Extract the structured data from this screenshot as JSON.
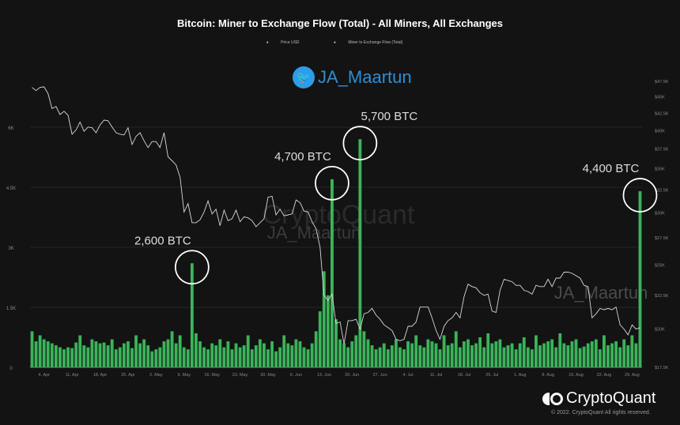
{
  "chart_data": {
    "type": "bar+line",
    "title": "Bitcoin: Miner to Exchange Flow (Total) - All Miners, All Exchanges",
    "legend": [
      "Price USD",
      "Miner to Exchange Flow (Total)"
    ],
    "legend_placement": "top-center",
    "x_start": "2022-04-01",
    "x_tick_labels": [
      "4. Apr",
      "11. Apr",
      "18. Apr",
      "25. Apr",
      "2. May",
      "9. May",
      "16. May",
      "23. May",
      "30. May",
      "6. Jun",
      "13. Jun",
      "20. Jun",
      "27. Jun",
      "4. Jul",
      "11. Jul",
      "18. Jul",
      "25. Jul",
      "1. Aug",
      "8. Aug",
      "15. Aug",
      "22. Aug",
      "29. Aug"
    ],
    "y_left_ticks": [
      "0",
      "1.5K",
      "3K",
      "4.5K",
      "6K"
    ],
    "y_left_range": [
      0,
      7500
    ],
    "y_right_ticks": [
      "$17.5K",
      "$20K",
      "$22.5K",
      "$25K",
      "$27.5K",
      "$30K",
      "$32.5K",
      "$35K",
      "$37.5K",
      "$40K",
      "$42.5K",
      "$45K",
      "$47.5K"
    ],
    "y_right_scale": "log",
    "grid": "horizontal",
    "colors": {
      "flow": "#3cb35a",
      "price": "#d8d8d8",
      "annotation": "#ffffff",
      "background": "#131313"
    },
    "series": [
      {
        "name": "Miner to Exchange Flow (Total)",
        "axis": "left",
        "type": "bar",
        "unit": "BTC",
        "values": [
          900,
          650,
          800,
          700,
          650,
          600,
          550,
          500,
          450,
          500,
          480,
          620,
          800,
          550,
          500,
          700,
          650,
          600,
          620,
          550,
          700,
          450,
          500,
          600,
          650,
          480,
          800,
          600,
          700,
          550,
          400,
          450,
          500,
          650,
          700,
          900,
          600,
          800,
          500,
          450,
          2600,
          850,
          650,
          500,
          450,
          600,
          550,
          700,
          500,
          650,
          450,
          600,
          500,
          550,
          800,
          450,
          550,
          700,
          600,
          450,
          650,
          400,
          500,
          800,
          600,
          550,
          700,
          650,
          500,
          450,
          600,
          900,
          1400,
          2400,
          1800,
          4700,
          1200,
          700,
          600,
          500,
          650,
          800,
          5700,
          900,
          700,
          550,
          450,
          500,
          600,
          450,
          550,
          700,
          500,
          450,
          650,
          600,
          800,
          550,
          500,
          700,
          650,
          600,
          450,
          800,
          550,
          600,
          900,
          500,
          650,
          700,
          550,
          600,
          750,
          500,
          850,
          600,
          650,
          700,
          500,
          550,
          600,
          450,
          600,
          750,
          500,
          450,
          800,
          550,
          600,
          650,
          700,
          500,
          850,
          600,
          550,
          650,
          700,
          480,
          520,
          600,
          650,
          700,
          450,
          800,
          550,
          600,
          650,
          500,
          700,
          550,
          800,
          600,
          4400
        ]
      },
      {
        "name": "Price USD",
        "axis": "right",
        "type": "line",
        "unit": "USD (thousands)",
        "values": [
          46.5,
          46,
          46.5,
          46.6,
          45.5,
          43.2,
          43.5,
          42.3,
          42.8,
          42.2,
          39.5,
          40.1,
          41.2,
          39.9,
          40.5,
          40.4,
          39.7,
          40.8,
          41.5,
          41.4,
          40.5,
          39.7,
          39.5,
          39.4,
          40.4,
          38.1,
          39.2,
          39.7,
          38.6,
          37.7,
          38.5,
          38.5,
          37.7,
          39.7,
          36.5,
          36.0,
          35.5,
          34.0,
          30.1,
          31.0,
          29.0,
          29.0,
          29.3,
          30.1,
          31.3,
          29.9,
          30.4,
          28.7,
          30.3,
          29.2,
          29.4,
          30.3,
          29.1,
          29.6,
          29.5,
          29.2,
          28.6,
          29.0,
          29.4,
          31.7,
          31.8,
          29.8,
          30.4,
          29.7,
          29.8,
          29.9,
          31.4,
          31.1,
          30.2,
          30.1,
          29.1,
          28.4,
          26.6,
          22.5,
          22.1,
          22.6,
          20.4,
          20.5,
          19.0,
          20.6,
          20.6,
          20.7,
          20.0,
          21.1,
          21.2,
          21.5,
          21.0,
          20.7,
          20.3,
          20.1,
          19.9,
          19.3,
          19.2,
          19.3,
          20.2,
          20.2,
          20.5,
          21.6,
          21.6,
          21.6,
          20.8,
          19.9,
          19.3,
          20.2,
          20.6,
          20.8,
          21.2,
          20.8,
          22.4,
          23.4,
          23.2,
          23.1,
          22.7,
          22.5,
          22.6,
          21.3,
          21.2,
          22.9,
          23.8,
          23.7,
          23.6,
          23.3,
          23.3,
          22.9,
          22.8,
          22.6,
          23.3,
          23.2,
          23.2,
          23.8,
          23.2,
          23.9,
          23.9,
          24.4,
          24.4,
          24.3,
          24.1,
          23.9,
          23.3,
          23.2,
          20.8,
          21.1,
          21.5,
          21.4,
          21.5,
          21.4,
          21.6,
          20.3,
          20.0,
          19.6,
          20.3,
          20.0,
          20.1
        ]
      }
    ],
    "annotations": [
      {
        "label": "2,600 BTC",
        "date": "2022-05-11",
        "value": 2600
      },
      {
        "label": "4,700 BTC",
        "date": "2022-06-15",
        "value": 4700
      },
      {
        "label": "5,700 BTC",
        "date": "2022-06-22",
        "value": 5700
      },
      {
        "label": "4,400 BTC",
        "date": "2022-08-31",
        "value": 4400
      }
    ]
  },
  "watermarks": {
    "brand": "CryptoQuant",
    "author": "JA_Maartun",
    "author2": "JA_Maartun"
  },
  "twitter_handle": {
    "icon": "twitter-bird-icon",
    "text": "JA_Maartun"
  },
  "footer": {
    "logo_text": "CryptoQuant",
    "copyright": "© 2022. CryptoQuant All rights reserved."
  }
}
